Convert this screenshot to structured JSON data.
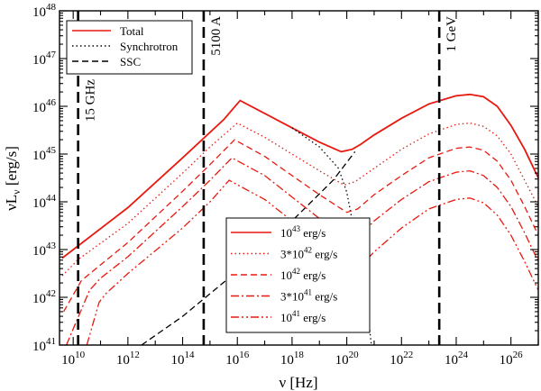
{
  "chart_data": {
    "type": "line",
    "xlabel": "ν [Hz]",
    "ylabel": "νL_ν [erg/s]",
    "x_scale": "log10",
    "y_scale": "log10",
    "xlim_log10": [
      9.5,
      27.0
    ],
    "ylim_log10": [
      41,
      48
    ],
    "x_tick_exponents": [
      10,
      12,
      14,
      16,
      18,
      20,
      22,
      24,
      26
    ],
    "y_tick_exponents": [
      41,
      42,
      43,
      44,
      45,
      46,
      47,
      48
    ],
    "tick_base": "10",
    "colors": {
      "red": "#e8190f",
      "black": "#000000"
    },
    "vlines": [
      {
        "x_log10": 10.18,
        "label": "15 GHz"
      },
      {
        "x_log10": 14.77,
        "label": "5100 A"
      },
      {
        "x_log10": 23.38,
        "label": "1 GeV"
      }
    ],
    "legend_top": {
      "position": "top-left",
      "entries": [
        {
          "label": "Total",
          "style": "solid",
          "color": "#e8190f"
        },
        {
          "label": "Synchrotron",
          "style": "dotted",
          "color": "#000000"
        },
        {
          "label": "SSC",
          "style": "dashed",
          "color": "#000000"
        }
      ]
    },
    "legend_bottom": {
      "position": "bottom-center",
      "entries": [
        {
          "mantissa": "",
          "exponent": "43",
          "unit": " erg/s",
          "style": "solid",
          "color": "#e8190f"
        },
        {
          "mantissa": "3*",
          "exponent": "42",
          "unit": " erg/s",
          "style": "dotted",
          "color": "#e8190f"
        },
        {
          "mantissa": "",
          "exponent": "42",
          "unit": " erg/s",
          "style": "dashed",
          "color": "#e8190f"
        },
        {
          "mantissa": "3*",
          "exponent": "41",
          "unit": " erg/s",
          "style": "dashdot",
          "color": "#e8190f"
        },
        {
          "mantissa": "",
          "exponent": "41",
          "unit": " erg/s",
          "style": "dashdotdot",
          "color": "#e8190f"
        }
      ]
    },
    "series": [
      {
        "name": "Total (10^43 erg/s)",
        "style": "solid",
        "color": "#e8190f",
        "x_log10": [
          9.6,
          12,
          14,
          15.5,
          16.1,
          17,
          18,
          19,
          19.8,
          20.2,
          20.5,
          21,
          22,
          23,
          24,
          24.5,
          25,
          25.5,
          26,
          26.5,
          27
        ],
        "y_log10": [
          42.82,
          43.88,
          44.92,
          45.72,
          46.12,
          45.85,
          45.55,
          45.25,
          45.05,
          45.1,
          45.2,
          45.4,
          45.75,
          46.05,
          46.22,
          46.25,
          46.2,
          46.0,
          45.6,
          45.1,
          44.5
        ]
      },
      {
        "name": "Synchrotron",
        "style": "dotted",
        "color": "#000000",
        "x_log10": [
          18,
          19,
          19.7,
          20.0,
          20.2,
          20.4,
          20.6,
          20.8,
          20.9
        ],
        "y_log10": [
          45.55,
          45.15,
          44.7,
          44.2,
          43.6,
          42.9,
          42.2,
          41.5,
          41.0
        ]
      },
      {
        "name": "SSC",
        "style": "dashed",
        "color": "#000000",
        "x_log10": [
          12.5,
          14,
          16,
          18,
          19.5,
          20.3
        ],
        "y_log10": [
          41.0,
          41.6,
          42.55,
          43.6,
          44.45,
          45.05
        ]
      },
      {
        "name": "3*10^42 erg/s",
        "style": "dotted",
        "color": "#e8190f",
        "x_log10": [
          9.6,
          10.2,
          12,
          14,
          15,
          16.0,
          17,
          18,
          19,
          19.9,
          20.3,
          21,
          22,
          23,
          24,
          24.5,
          25,
          25.5,
          26,
          26.5,
          27
        ],
        "y_log10": [
          42.45,
          42.8,
          43.55,
          44.6,
          45.15,
          45.65,
          45.35,
          45.0,
          44.65,
          44.35,
          44.42,
          44.7,
          45.1,
          45.42,
          45.62,
          45.65,
          45.58,
          45.38,
          45.0,
          44.45,
          43.9
        ]
      },
      {
        "name": "10^42 erg/s",
        "style": "dashed",
        "color": "#e8190f",
        "x_log10": [
          9.65,
          10.3,
          12,
          14,
          15,
          15.9,
          17,
          18,
          19,
          20.0,
          20.4,
          21,
          22,
          23,
          24,
          24.5,
          25,
          25.5,
          26,
          26.5,
          27
        ],
        "y_log10": [
          41.7,
          42.35,
          43.15,
          44.22,
          44.78,
          45.3,
          44.95,
          44.55,
          44.15,
          43.78,
          43.85,
          44.15,
          44.55,
          44.92,
          45.12,
          45.15,
          45.08,
          44.85,
          44.45,
          43.9,
          43.3
        ]
      },
      {
        "name": "3*10^41 erg/s",
        "style": "dashdot",
        "color": "#e8190f",
        "x_log10": [
          9.75,
          10.6,
          11,
          12,
          14,
          15,
          15.8,
          17,
          18,
          19,
          20.1,
          20.5,
          21,
          22,
          23,
          24,
          24.5,
          25,
          25.5,
          26,
          26.5,
          27
        ],
        "y_log10": [
          41.0,
          42.15,
          42.4,
          42.85,
          43.9,
          44.45,
          44.92,
          44.55,
          44.1,
          43.65,
          43.2,
          43.3,
          43.6,
          44.05,
          44.42,
          44.62,
          44.65,
          44.55,
          44.3,
          43.9,
          43.35,
          42.75
        ]
      },
      {
        "name": "10^41 erg/s",
        "style": "dashdotdot",
        "color": "#e8190f",
        "x_log10": [
          10.5,
          10.95,
          11.2,
          12,
          14,
          15,
          15.7,
          17,
          18,
          19,
          20.2,
          20.5,
          21,
          22,
          23,
          24,
          24.5,
          25,
          25.5,
          26,
          26.5,
          27
        ],
        "y_log10": [
          41.0,
          41.9,
          42.08,
          42.5,
          43.45,
          44.0,
          44.45,
          44.05,
          43.6,
          43.1,
          42.55,
          42.65,
          42.95,
          43.45,
          43.85,
          44.05,
          44.08,
          43.98,
          43.72,
          43.3,
          42.75,
          42.15
        ]
      }
    ]
  }
}
